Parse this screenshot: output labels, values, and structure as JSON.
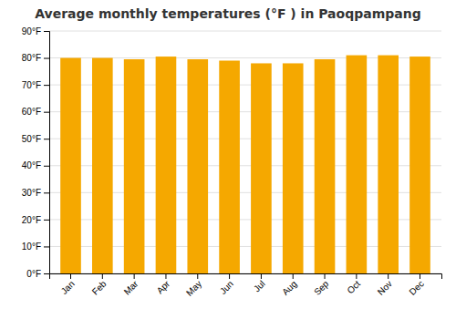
{
  "chart_data": {
    "type": "bar",
    "title": "Average monthly temperatures (°F ) in Paoqpampang",
    "categories": [
      "Jan",
      "Feb",
      "Mar",
      "Apr",
      "May",
      "Jun",
      "Jul",
      "Aug",
      "Sep",
      "Oct",
      "Nov",
      "Dec"
    ],
    "values": [
      80,
      80,
      79.5,
      80.5,
      79.5,
      79,
      78,
      78,
      79.5,
      81,
      81,
      80.5
    ],
    "color": "#F5A800",
    "ylim": [
      0,
      90
    ],
    "yticks": [
      {
        "value": 0,
        "label": "0°F"
      },
      {
        "value": 10,
        "label": "10°F"
      },
      {
        "value": 20,
        "label": "20°F"
      },
      {
        "value": 30,
        "label": "30°F"
      },
      {
        "value": 40,
        "label": "40°F"
      },
      {
        "value": 50,
        "label": "50°F"
      },
      {
        "value": 60,
        "label": "60°F"
      },
      {
        "value": 70,
        "label": "70°F"
      },
      {
        "value": 80,
        "label": "80°F"
      },
      {
        "value": 90,
        "label": "90°F"
      }
    ],
    "grid": true
  }
}
